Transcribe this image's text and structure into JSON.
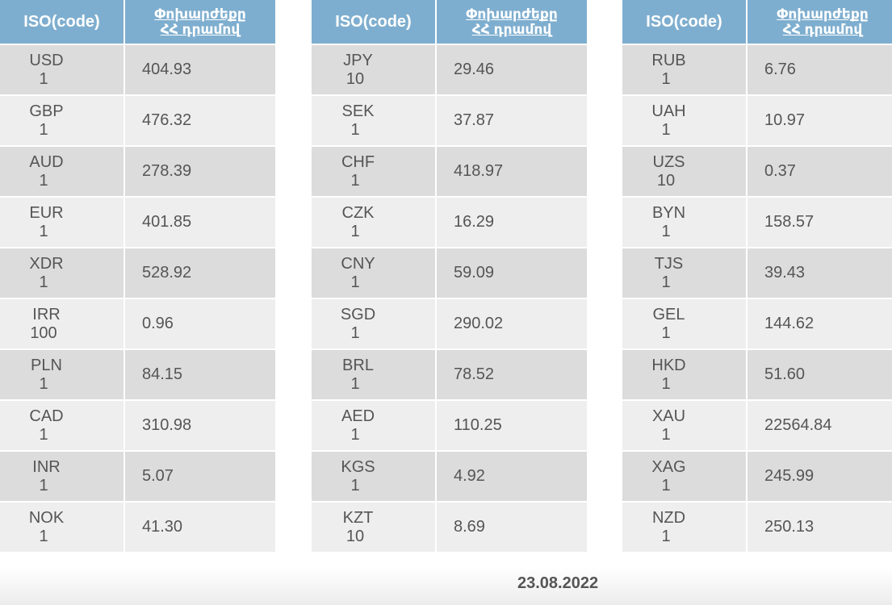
{
  "header": {
    "code_label": "ISO(code)",
    "rate_label_line1": "Փոխարժեքը",
    "rate_label_line2": "ՀՀ դրամով"
  },
  "tables": [
    {
      "rows": [
        {
          "iso": "USD",
          "unit": "1",
          "rate": "404.93"
        },
        {
          "iso": "GBP",
          "unit": "1",
          "rate": "476.32"
        },
        {
          "iso": "AUD",
          "unit": "1",
          "rate": "278.39"
        },
        {
          "iso": "EUR",
          "unit": "1",
          "rate": "401.85"
        },
        {
          "iso": "XDR",
          "unit": "1",
          "rate": "528.92"
        },
        {
          "iso": "IRR",
          "unit": "100",
          "rate": "0.96"
        },
        {
          "iso": "PLN",
          "unit": "1",
          "rate": "84.15"
        },
        {
          "iso": "CAD",
          "unit": "1",
          "rate": "310.98"
        },
        {
          "iso": "INR",
          "unit": "1",
          "rate": "5.07"
        },
        {
          "iso": "NOK",
          "unit": "1",
          "rate": "41.30"
        }
      ]
    },
    {
      "rows": [
        {
          "iso": "JPY",
          "unit": "10",
          "rate": "29.46"
        },
        {
          "iso": "SEK",
          "unit": "1",
          "rate": "37.87"
        },
        {
          "iso": "CHF",
          "unit": "1",
          "rate": "418.97"
        },
        {
          "iso": "CZK",
          "unit": "1",
          "rate": "16.29"
        },
        {
          "iso": "CNY",
          "unit": "1",
          "rate": "59.09"
        },
        {
          "iso": "SGD",
          "unit": "1",
          "rate": "290.02"
        },
        {
          "iso": "BRL",
          "unit": "1",
          "rate": "78.52"
        },
        {
          "iso": "AED",
          "unit": "1",
          "rate": "110.25"
        },
        {
          "iso": "KGS",
          "unit": "1",
          "rate": "4.92"
        },
        {
          "iso": "KZT",
          "unit": "10",
          "rate": "8.69"
        }
      ]
    },
    {
      "rows": [
        {
          "iso": "RUB",
          "unit": "1",
          "rate": "6.76"
        },
        {
          "iso": "UAH",
          "unit": "1",
          "rate": "10.97"
        },
        {
          "iso": "UZS",
          "unit": "10",
          "rate": "0.37"
        },
        {
          "iso": "BYN",
          "unit": "1",
          "rate": "158.57"
        },
        {
          "iso": "TJS",
          "unit": "1",
          "rate": "39.43"
        },
        {
          "iso": "GEL",
          "unit": "1",
          "rate": "144.62"
        },
        {
          "iso": "HKD",
          "unit": "1",
          "rate": "51.60"
        },
        {
          "iso": "XAU",
          "unit": "1",
          "rate": "22564.84"
        },
        {
          "iso": "XAG",
          "unit": "1",
          "rate": "245.99"
        },
        {
          "iso": "NZD",
          "unit": "1",
          "rate": "250.13"
        }
      ]
    }
  ],
  "footer": {
    "date": "23.08.2022"
  }
}
